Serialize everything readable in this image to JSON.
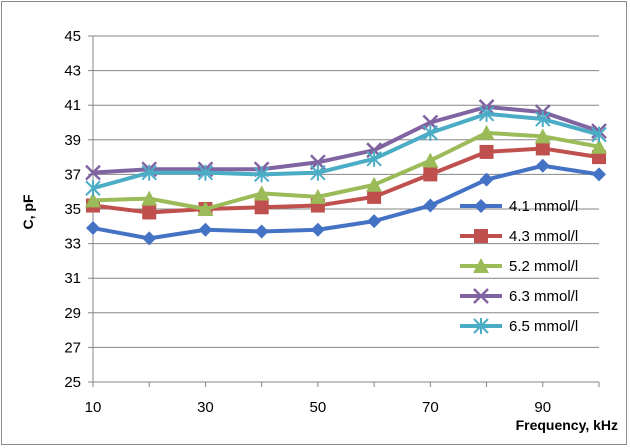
{
  "chart_data": {
    "type": "line",
    "xlabel": "Frequency, kHz",
    "ylabel": "C, pF",
    "xlim": [
      10,
      100
    ],
    "ylim": [
      25,
      45
    ],
    "x_ticks": [
      10,
      30,
      50,
      70,
      90
    ],
    "y_ticks": [
      25,
      27,
      29,
      31,
      33,
      35,
      37,
      39,
      41,
      43,
      45
    ],
    "grid": "horizontal",
    "legend_position": "right, inside plot",
    "x": [
      10,
      20,
      30,
      40,
      50,
      60,
      70,
      80,
      90,
      100
    ],
    "series": [
      {
        "name": "4.1 mmol/l",
        "color": "#4472C4",
        "marker": "diamond",
        "values": [
          33.9,
          33.3,
          33.8,
          33.7,
          33.8,
          34.3,
          35.2,
          36.7,
          37.5,
          37.0
        ]
      },
      {
        "name": "4.3 mmol/l",
        "color": "#C0504D",
        "marker": "square",
        "values": [
          35.2,
          34.8,
          35.0,
          35.1,
          35.2,
          35.7,
          37.0,
          38.3,
          38.5,
          38.0
        ]
      },
      {
        "name": "5.2 mmol/l",
        "color": "#9BBB59",
        "marker": "triangle",
        "values": [
          35.5,
          35.6,
          35.0,
          35.9,
          35.7,
          36.4,
          37.8,
          39.4,
          39.2,
          38.6
        ]
      },
      {
        "name": "6.3 mmol/l",
        "color": "#8064A2",
        "marker": "x",
        "values": [
          37.1,
          37.3,
          37.3,
          37.3,
          37.7,
          38.4,
          40.0,
          40.9,
          40.6,
          39.5
        ]
      },
      {
        "name": "6.5 mmol/l",
        "color": "#4BACC6",
        "marker": "star",
        "values": [
          36.2,
          37.1,
          37.1,
          37.0,
          37.1,
          37.9,
          39.4,
          40.5,
          40.2,
          39.3
        ]
      }
    ]
  }
}
